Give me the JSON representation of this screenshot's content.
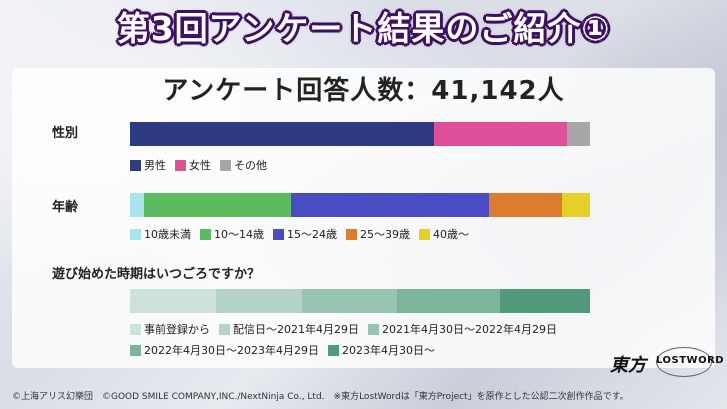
{
  "title": "第3回アンケート結果のご紹介①",
  "respondents": "アンケート回答人数：41,142人",
  "colors": {
    "male": "#2e3b84",
    "female": "#e0509a",
    "other": "#a7a7a7",
    "age1": "#a9e4ee",
    "age2": "#5cbb5f",
    "age3": "#4a4cc3",
    "age4": "#dc7d2e",
    "age5": "#e6cf27",
    "p1": "#cde3da",
    "p2": "#b3d4c6",
    "p3": "#98c5b2",
    "p4": "#7cb49c",
    "p5": "#519a7c"
  },
  "chart_data": [
    {
      "type": "bar",
      "title": "性別",
      "categories": [
        "男性",
        "女性",
        "その他"
      ],
      "values": [
        66,
        29,
        5
      ]
    },
    {
      "type": "bar",
      "title": "年齢",
      "categories": [
        "10歳未満",
        "10〜14歳",
        "15〜24歳",
        "25〜39歳",
        "40歳〜"
      ],
      "values": [
        3,
        32,
        43,
        16,
        6
      ]
    },
    {
      "type": "bar",
      "title": "遊び始めた時期はいつごろですか？",
      "categories": [
        "事前登録から",
        "配信日〜2021年4月29日",
        "2021年4月30日〜2022年4月29日",
        "2022年4月30日〜2023年4月29日",
        "2023年4月30日〜"
      ],
      "values": [
        20,
        20,
        22,
        24,
        21
      ]
    }
  ],
  "footer": "©上海アリス幻樂団　©GOOD SMILE COMPANY,INC./NextNinja Co., Ltd.　※東方LostWordは「東方Project」を原作とした公認二次創作作品です。",
  "logo": {
    "main": "東方",
    "sub": "LOSTWORD"
  }
}
